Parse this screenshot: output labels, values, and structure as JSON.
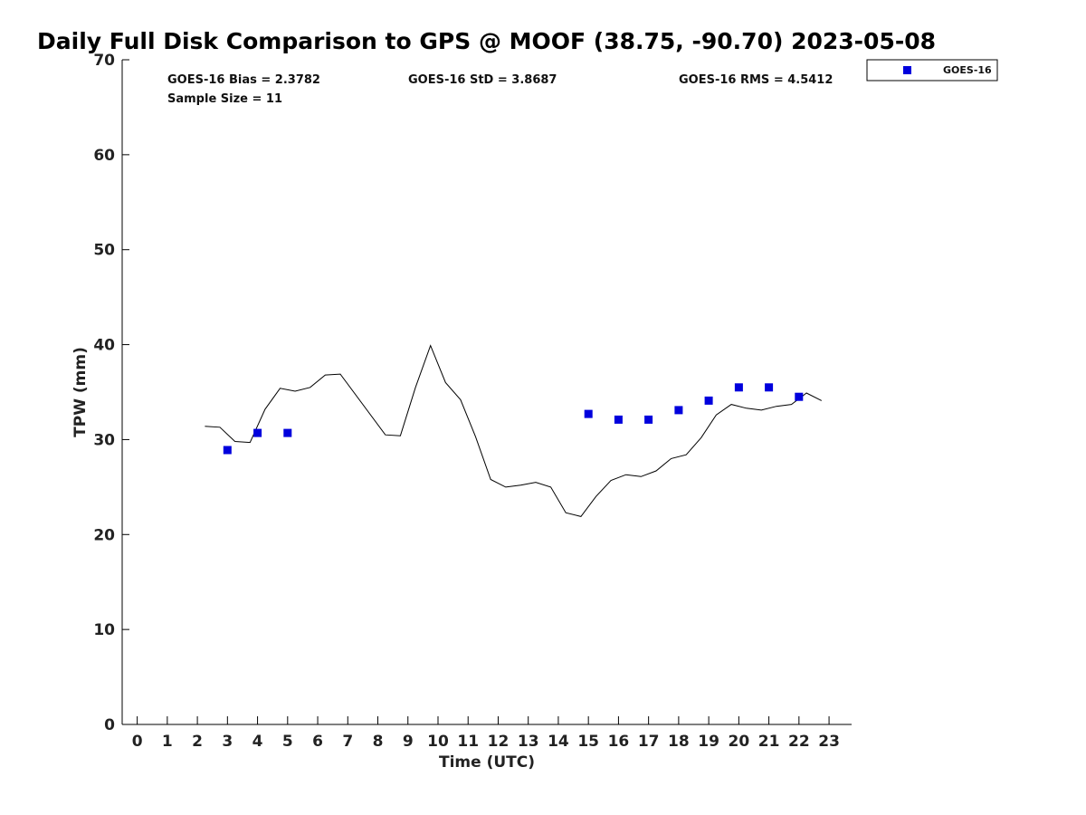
{
  "chart_data": {
    "type": "scatter",
    "title": "Daily Full Disk Comparison to GPS @ MOOF (38.75, -90.70) 2023-05-08",
    "xlabel": "Time (UTC)",
    "ylabel": "TPW (mm)",
    "xlim": [
      -0.5,
      23.75
    ],
    "ylim": [
      0,
      70
    ],
    "x_ticks": [
      "0",
      "1",
      "2",
      "3",
      "4",
      "5",
      "6",
      "7",
      "8",
      "9",
      "10",
      "11",
      "12",
      "13",
      "14",
      "15",
      "16",
      "17",
      "18",
      "19",
      "20",
      "21",
      "22",
      "23"
    ],
    "y_ticks": [
      "0",
      "10",
      "20",
      "30",
      "40",
      "50",
      "60",
      "70"
    ],
    "grid": false,
    "legend_position": "top-right, outside plot",
    "stats": {
      "bias": "GOES-16 Bias = 2.3782",
      "std": "GOES-16 StD = 3.8687",
      "rms": "GOES-16 RMS = 4.5412",
      "sample": "Sample Size = 11"
    },
    "series": [
      {
        "name": "GOES-16",
        "kind": "scatter",
        "color": "#0000dd",
        "marker": "square",
        "x": [
          3,
          4,
          5,
          15,
          16,
          17,
          18,
          19,
          20,
          21,
          22
        ],
        "y": [
          28.9,
          30.7,
          30.7,
          32.7,
          32.1,
          32.1,
          33.1,
          34.1,
          35.5,
          35.5,
          34.5
        ]
      },
      {
        "kind": "line",
        "color": "#000000",
        "x": [
          2.25,
          2.75,
          3.25,
          3.75,
          4.25,
          4.75,
          5.25,
          5.75,
          6.25,
          6.75,
          8.25,
          8.75,
          9.25,
          9.75,
          10.25,
          10.75,
          11.25,
          11.75,
          12.25,
          12.75,
          13.25,
          13.75,
          14.25,
          14.75,
          15.25,
          15.75,
          16.25,
          16.75,
          17.25,
          17.75,
          18.25,
          18.75,
          19.25,
          19.75,
          20.25,
          20.75,
          21.25,
          21.75,
          22.25,
          22.75
        ],
        "y": [
          31.4,
          31.3,
          29.8,
          29.7,
          33.2,
          35.4,
          35.1,
          35.5,
          36.8,
          36.9,
          30.5,
          30.4,
          35.5,
          39.9,
          36.0,
          34.2,
          30.3,
          25.8,
          25.0,
          25.2,
          25.5,
          25.0,
          22.3,
          21.9,
          24.0,
          25.7,
          26.3,
          26.1,
          26.7,
          28.0,
          28.4,
          30.2,
          32.6,
          33.7,
          33.3,
          33.1,
          33.5,
          33.7,
          34.9,
          34.1
        ]
      }
    ]
  }
}
